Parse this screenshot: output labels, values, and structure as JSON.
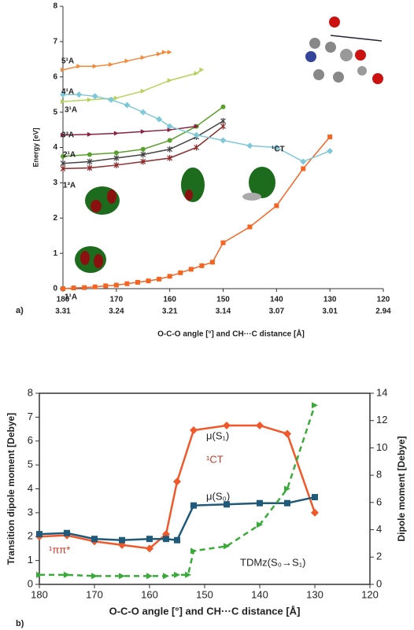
{
  "chart_data": [
    {
      "type": "line",
      "panel_label": "a)",
      "xlabel": "O-C-O angle [°] and CH···C distance [Å]",
      "ylabel": "Energy [eV]",
      "xlim": [
        180,
        120
      ],
      "ylim": [
        0,
        8
      ],
      "xticks": [
        180,
        170,
        160,
        150,
        140,
        130,
        120
      ],
      "x2_tick_labels": [
        "3.31",
        "3.24",
        "3.21",
        "3.14",
        "3.07",
        "3.01",
        "2.94"
      ],
      "yticks": [
        0,
        1,
        2,
        3,
        4,
        5,
        6,
        7,
        8
      ],
      "annotations": [
        "5¹A",
        "4¹A",
        "3¹A",
        "3³A",
        "2¹A",
        "1³A",
        "1¹A",
        "¹CT"
      ],
      "series": [
        {
          "name": "1¹A",
          "color": "#f26522",
          "marker": "square",
          "x": [
            180,
            178,
            176,
            174,
            172,
            170,
            168,
            166,
            164,
            162,
            160,
            158,
            156,
            154,
            152,
            150,
            145,
            140,
            135,
            130
          ],
          "values": [
            0,
            0.02,
            0.03,
            0.05,
            0.08,
            0.1,
            0.14,
            0.18,
            0.22,
            0.27,
            0.35,
            0.45,
            0.55,
            0.65,
            0.75,
            1.3,
            1.75,
            2.35,
            3.4,
            4.3
          ]
        },
        {
          "color": "#444444",
          "marker": "star",
          "x": [
            180,
            175,
            170,
            165,
            160,
            155,
            150
          ],
          "values": [
            3.55,
            3.6,
            3.7,
            3.8,
            3.95,
            4.3,
            4.75
          ]
        },
        {
          "name": "1³A",
          "color": "#8b2b2b",
          "marker": "star",
          "x": [
            180,
            175,
            170,
            165,
            160,
            155,
            150
          ],
          "values": [
            3.4,
            3.42,
            3.5,
            3.6,
            3.7,
            4.0,
            4.6
          ]
        },
        {
          "name": "2¹A",
          "color": "#5aa02c",
          "marker": "circle",
          "x": [
            180,
            175,
            170,
            165,
            160,
            155,
            150
          ],
          "values": [
            3.75,
            3.8,
            3.85,
            3.95,
            4.2,
            4.6,
            5.15
          ]
        },
        {
          "name": "3³A",
          "color": "#8b2040",
          "marker": "triangle",
          "x": [
            180,
            175,
            170,
            165,
            160,
            155
          ],
          "values": [
            4.35,
            4.37,
            4.4,
            4.45,
            4.5,
            4.6
          ]
        },
        {
          "name": "3¹A",
          "color": "#b5d35a",
          "marker": "triangle",
          "x": [
            180,
            175,
            170,
            165,
            160,
            155,
            154
          ],
          "values": [
            5.3,
            5.35,
            5.4,
            5.6,
            5.9,
            6.1,
            6.2
          ]
        },
        {
          "name": "4¹A",
          "color": "#7fc8d8",
          "marker": "diamond",
          "x": [
            180,
            177,
            174,
            171,
            168,
            165,
            162,
            160,
            155,
            150,
            145,
            140,
            135,
            130
          ],
          "values": [
            5.5,
            5.5,
            5.45,
            5.35,
            5.2,
            5.0,
            4.8,
            4.6,
            4.35,
            4.2,
            4.05,
            4.0,
            3.6,
            3.9
          ]
        },
        {
          "name": "5¹A",
          "color": "#f28a3c",
          "marker": "triangle",
          "x": [
            180,
            177,
            174,
            171,
            168,
            165,
            162,
            161,
            160
          ],
          "values": [
            6.2,
            6.3,
            6.3,
            6.35,
            6.45,
            6.55,
            6.65,
            6.7,
            6.7
          ]
        }
      ]
    },
    {
      "type": "line",
      "panel_label": "b)",
      "xlabel": "O-C-O angle [°] and CH···C distance [Å]",
      "ylabel": "Transition dipole moment [Debye]",
      "y2label": "Dipole moment [Debye]",
      "xlim": [
        180,
        120
      ],
      "ylim": [
        0,
        8
      ],
      "y2lim": [
        0,
        14
      ],
      "xticks": [
        180,
        170,
        160,
        150,
        140,
        130,
        120
      ],
      "yticks": [
        0,
        1,
        2,
        3,
        4,
        5,
        6,
        7,
        8
      ],
      "y2ticks": [
        0,
        2,
        4,
        6,
        8,
        10,
        12,
        14
      ],
      "annotations": [
        "μ(S₁)",
        "¹CT",
        "μ(S₀)",
        "¹ππ*",
        "TDMz(S₀→S₁)"
      ],
      "series": [
        {
          "color": "#f0582a",
          "marker": "diamond",
          "axis": "y2",
          "x": [
            180,
            175,
            170,
            165,
            160,
            157,
            155,
            152,
            146,
            140,
            135,
            130
          ],
          "values": [
            3.5,
            3.59,
            3.15,
            2.89,
            2.63,
            3.68,
            7.53,
            11.29,
            11.64,
            11.64,
            11.03,
            5.25
          ]
        },
        {
          "color": "#1f5a7a",
          "marker": "square",
          "axis": "y2",
          "x": [
            180,
            175,
            170,
            165,
            160,
            157,
            155,
            152,
            146,
            140,
            135,
            130
          ],
          "values": [
            3.68,
            3.76,
            3.33,
            3.24,
            3.33,
            3.33,
            3.24,
            5.78,
            5.86,
            5.95,
            5.95,
            6.39
          ]
        },
        {
          "color": "#3aaa3a",
          "marker": "triangle",
          "linestyle": "dashed",
          "x": [
            180,
            175,
            170,
            165,
            160,
            157,
            155,
            153,
            152,
            146,
            140,
            135,
            130
          ],
          "values": [
            0.4,
            0.4,
            0.35,
            0.35,
            0.35,
            0.35,
            0.4,
            0.4,
            1.4,
            1.6,
            2.5,
            4.0,
            7.5
          ]
        }
      ]
    }
  ]
}
